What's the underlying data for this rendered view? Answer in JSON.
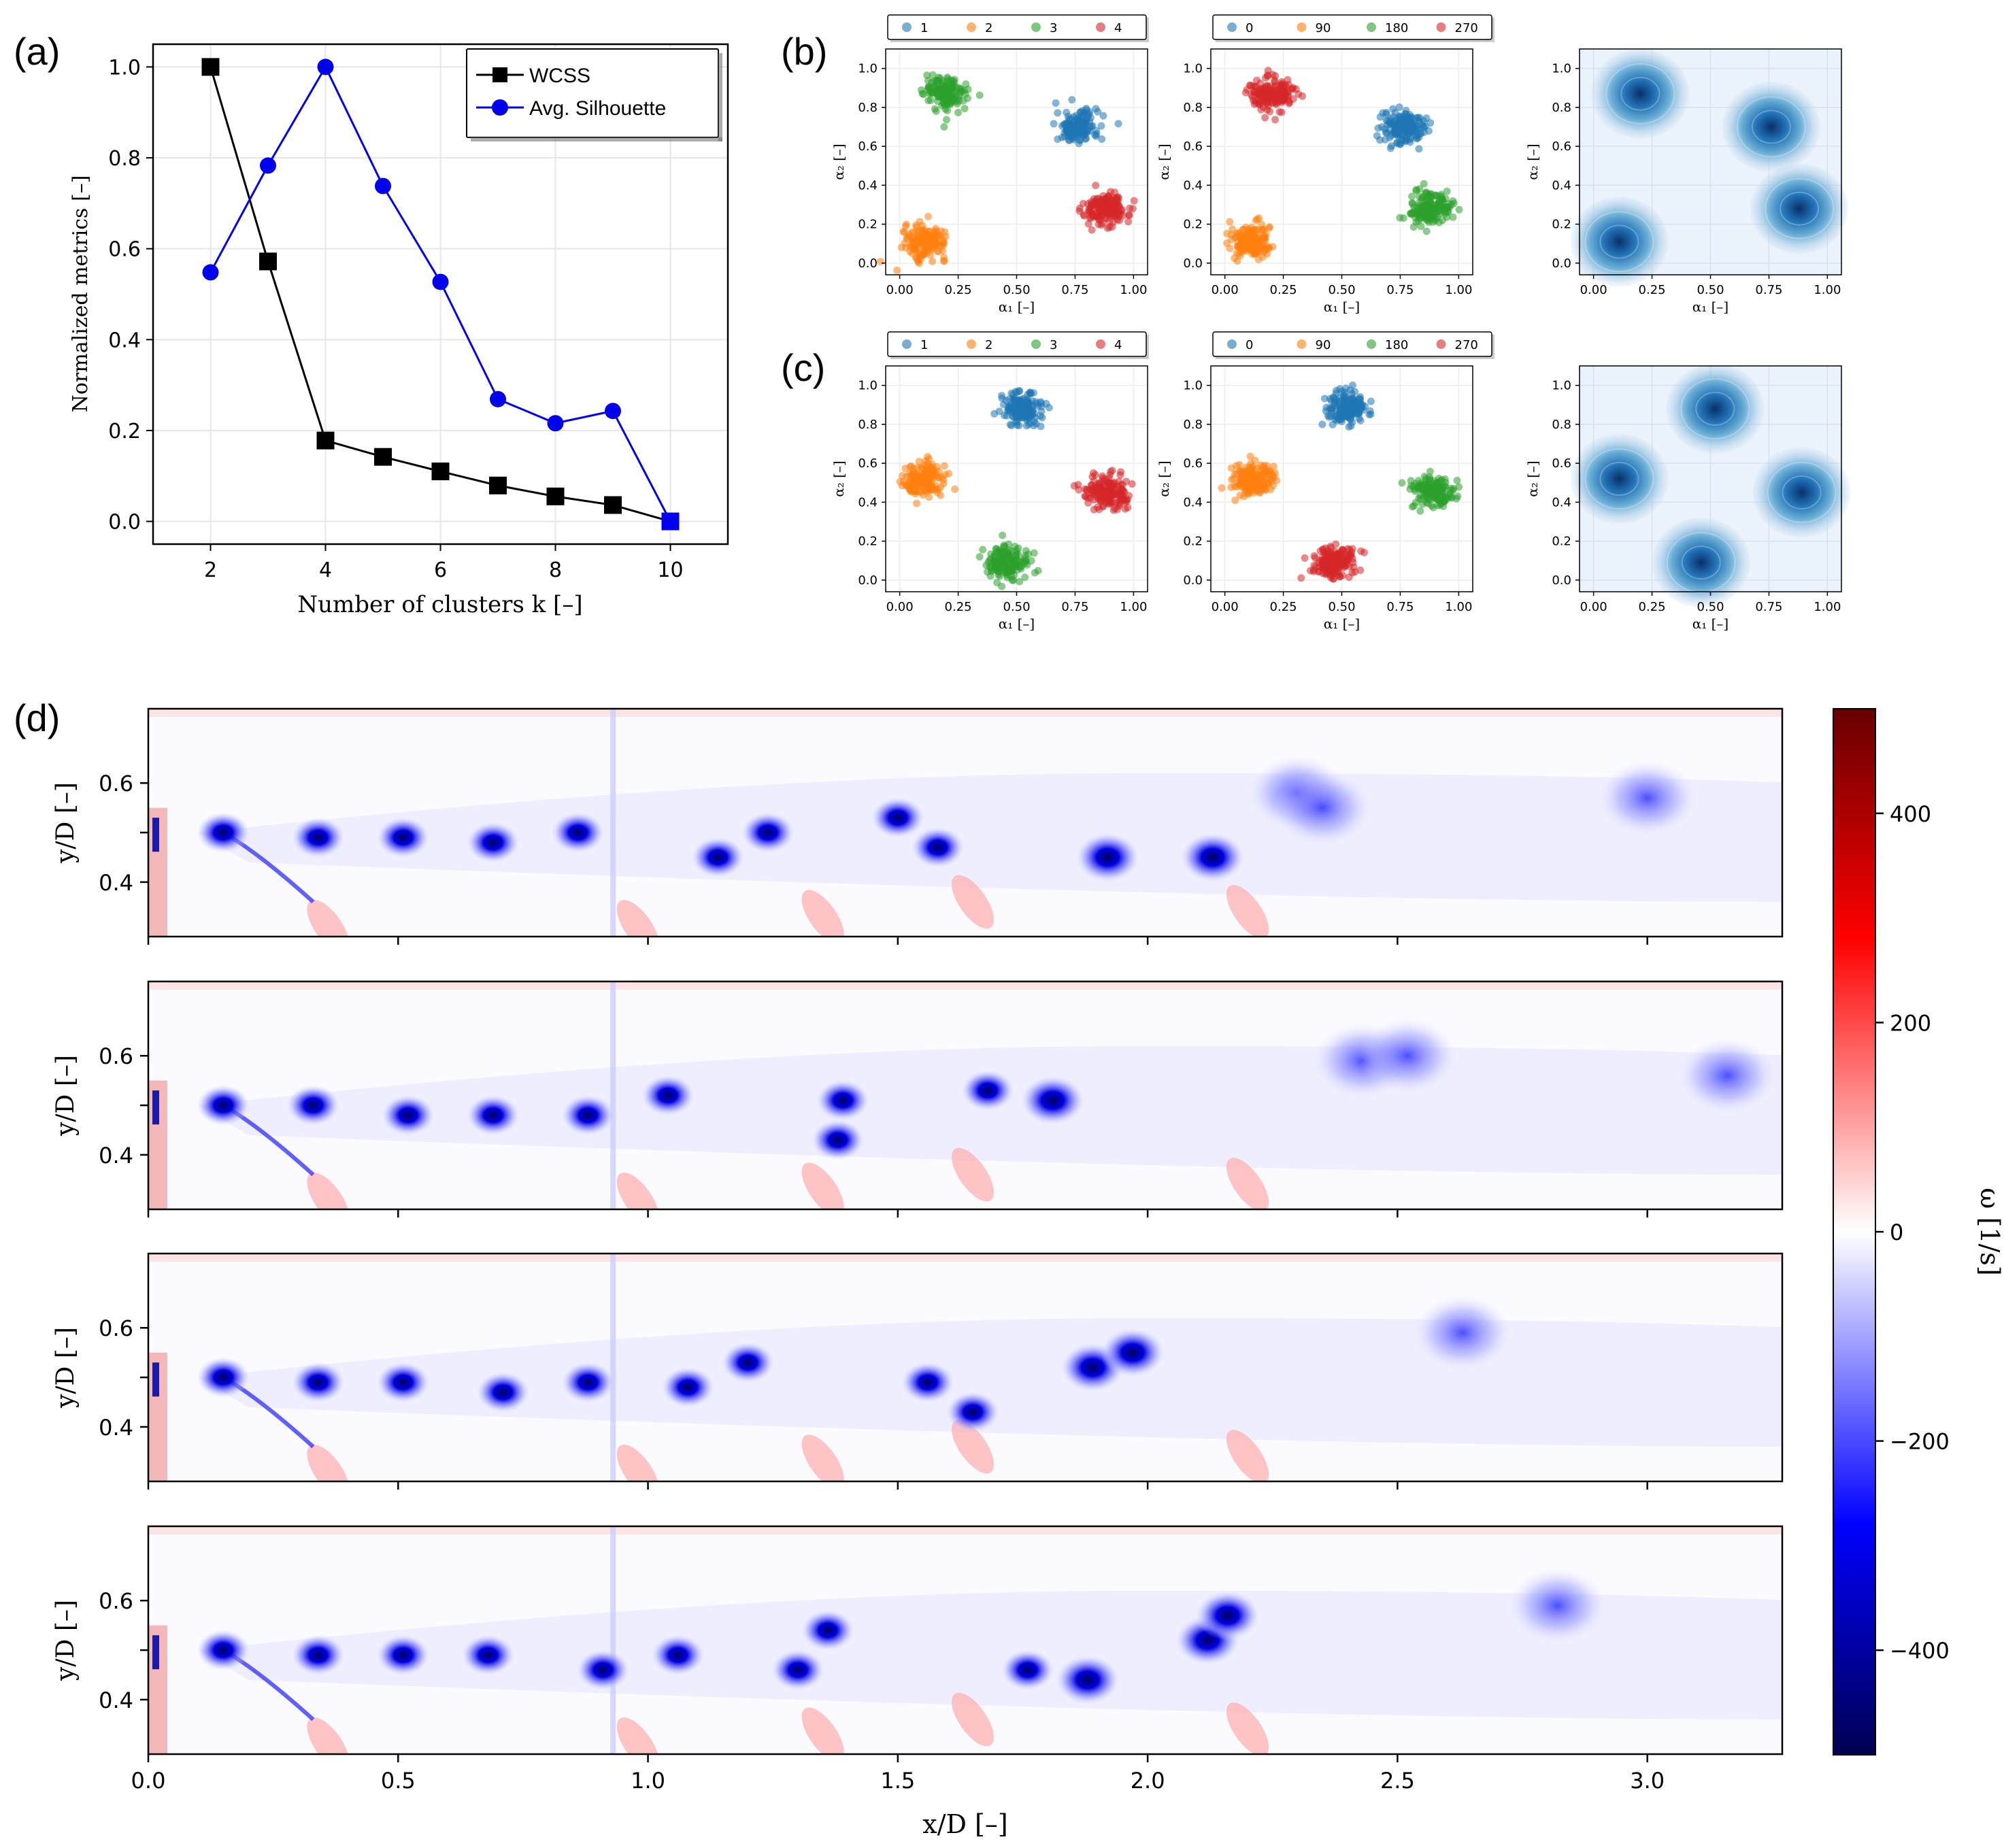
{
  "panel_labels": [
    "(a)",
    "(b)",
    "(c)",
    "(d)"
  ],
  "chart_data": [
    {
      "id": "a",
      "type": "line",
      "xlabel": "Number of clusters k [–]",
      "ylabel": "Normalized metrics [–]",
      "xlim": [
        1,
        11
      ],
      "ylim": [
        -0.05,
        1.05
      ],
      "xticks": [
        2,
        4,
        6,
        8,
        10
      ],
      "yticks": [
        0.0,
        0.2,
        0.4,
        0.6,
        0.8,
        1.0
      ],
      "tick_labels_x": [
        "2",
        "4",
        "6",
        "8",
        "10"
      ],
      "tick_labels_y": [
        "0.0",
        "0.2",
        "0.4",
        "0.6",
        "0.8",
        "1.0"
      ],
      "grid": true,
      "legend": "top-right",
      "x": [
        2,
        3,
        4,
        5,
        6,
        7,
        8,
        9,
        10
      ],
      "series": [
        {
          "name": "WCSS",
          "color": "#000000",
          "marker": "square",
          "values": [
            1.0,
            0.572,
            0.178,
            0.142,
            0.11,
            0.079,
            0.055,
            0.036,
            0.0
          ]
        },
        {
          "name": "Avg. Silhouette",
          "color": "#0000ee",
          "marker": "circle",
          "values": [
            0.548,
            0.783,
            1.0,
            0.738,
            0.527,
            0.269,
            0.216,
            0.243,
            0.0
          ]
        }
      ]
    },
    {
      "id": "b-c",
      "type": "scatter",
      "xlabel": "α₁ [–]",
      "ylabel": "α₂ [–]",
      "xlim": [
        -0.06,
        1.06
      ],
      "ylim": [
        -0.06,
        1.1
      ],
      "tick_labels_x": [
        "0.00",
        "0.25",
        "0.50",
        "0.75",
        "1.00"
      ],
      "tick_labels_y": [
        "0.0",
        "0.2",
        "0.4",
        "0.6",
        "0.8",
        "1.0"
      ],
      "legend_sets": [
        {
          "labels": [
            "1",
            "2",
            "3",
            "4"
          ],
          "colors": [
            "#1f77b4",
            "#ff7f0e",
            "#2ca02c",
            "#d62728"
          ]
        },
        {
          "labels": [
            "0",
            "90",
            "180",
            "270"
          ],
          "colors": [
            "#1f77b4",
            "#ff7f0e",
            "#2ca02c",
            "#d62728"
          ]
        }
      ],
      "rows": [
        {
          "label": "(b)",
          "clusters_by_class": [
            {
              "color": "#1f77b4",
              "center": [
                0.76,
                0.7
              ]
            },
            {
              "color": "#ff7f0e",
              "center": [
                0.11,
                0.11
              ]
            },
            {
              "color": "#2ca02c",
              "center": [
                0.2,
                0.87
              ]
            },
            {
              "color": "#d62728",
              "center": [
                0.88,
                0.28
              ]
            }
          ],
          "clusters_by_phase": [
            {
              "color": "#1f77b4",
              "center": [
                0.76,
                0.7
              ]
            },
            {
              "color": "#ff7f0e",
              "center": [
                0.11,
                0.11
              ]
            },
            {
              "color": "#2ca02c",
              "center": [
                0.88,
                0.28
              ]
            },
            {
              "color": "#d62728",
              "center": [
                0.2,
                0.87
              ]
            }
          ]
        },
        {
          "label": "(c)",
          "clusters_by_class": [
            {
              "color": "#1f77b4",
              "center": [
                0.52,
                0.88
              ]
            },
            {
              "color": "#ff7f0e",
              "center": [
                0.11,
                0.52
              ]
            },
            {
              "color": "#2ca02c",
              "center": [
                0.46,
                0.09
              ]
            },
            {
              "color": "#d62728",
              "center": [
                0.89,
                0.45
              ]
            }
          ],
          "clusters_by_phase": [
            {
              "color": "#1f77b4",
              "center": [
                0.52,
                0.88
              ]
            },
            {
              "color": "#ff7f0e",
              "center": [
                0.11,
                0.52
              ]
            },
            {
              "color": "#2ca02c",
              "center": [
                0.89,
                0.45
              ]
            },
            {
              "color": "#d62728",
              "center": [
                0.46,
                0.09
              ]
            }
          ]
        }
      ]
    },
    {
      "id": "d",
      "type": "heatmap",
      "xlabel": "x/D [–]",
      "ylabel": "y/D [–]",
      "xlim": [
        0.0,
        3.27
      ],
      "ylim": [
        0.29,
        0.75
      ],
      "xticks": [
        0.0,
        0.5,
        1.0,
        1.5,
        2.0,
        2.5,
        3.0
      ],
      "tick_labels_x": [
        "0.0",
        "0.5",
        "1.0",
        "1.5",
        "2.0",
        "2.5",
        "3.0"
      ],
      "yticks": [
        0.4,
        0.5,
        0.6
      ],
      "tick_labels_y": [
        "0.4",
        "0.6"
      ],
      "colorbar": {
        "label": "ω [1/s]",
        "range": [
          -500,
          500
        ],
        "ticks": [
          400,
          200,
          0,
          -200,
          -400
        ],
        "tick_labels": [
          "400",
          "200",
          "0",
          "−200",
          "−400"
        ]
      },
      "panels": [
        {
          "vortices": [
            [
              0.15,
              0.5
            ],
            [
              0.34,
              0.49
            ],
            [
              0.51,
              0.49
            ],
            [
              0.69,
              0.48
            ],
            [
              0.86,
              0.5
            ],
            [
              1.14,
              0.45
            ],
            [
              1.24,
              0.5
            ],
            [
              1.5,
              0.53
            ],
            [
              1.58,
              0.47
            ],
            [
              1.92,
              0.45
            ],
            [
              2.13,
              0.45
            ],
            [
              2.3,
              0.58
            ],
            [
              2.35,
              0.55
            ],
            [
              3.0,
              0.57
            ]
          ]
        },
        {
          "vortices": [
            [
              0.15,
              0.5
            ],
            [
              0.33,
              0.5
            ],
            [
              0.52,
              0.48
            ],
            [
              0.69,
              0.48
            ],
            [
              0.88,
              0.48
            ],
            [
              1.04,
              0.52
            ],
            [
              1.39,
              0.51
            ],
            [
              1.38,
              0.43
            ],
            [
              1.68,
              0.53
            ],
            [
              1.81,
              0.51
            ],
            [
              2.43,
              0.59
            ],
            [
              2.52,
              0.6
            ],
            [
              3.16,
              0.56
            ]
          ]
        },
        {
          "vortices": [
            [
              0.15,
              0.5
            ],
            [
              0.34,
              0.49
            ],
            [
              0.51,
              0.49
            ],
            [
              0.71,
              0.47
            ],
            [
              0.88,
              0.49
            ],
            [
              1.08,
              0.48
            ],
            [
              1.2,
              0.53
            ],
            [
              1.56,
              0.49
            ],
            [
              1.65,
              0.43
            ],
            [
              1.89,
              0.52
            ],
            [
              1.97,
              0.55
            ],
            [
              2.63,
              0.59
            ]
          ]
        },
        {
          "vortices": [
            [
              0.15,
              0.5
            ],
            [
              0.34,
              0.49
            ],
            [
              0.51,
              0.49
            ],
            [
              0.68,
              0.49
            ],
            [
              0.91,
              0.46
            ],
            [
              1.06,
              0.49
            ],
            [
              1.3,
              0.46
            ],
            [
              1.36,
              0.54
            ],
            [
              1.76,
              0.46
            ],
            [
              1.88,
              0.44
            ],
            [
              2.12,
              0.52
            ],
            [
              2.16,
              0.57
            ],
            [
              2.82,
              0.59
            ]
          ]
        }
      ]
    }
  ]
}
